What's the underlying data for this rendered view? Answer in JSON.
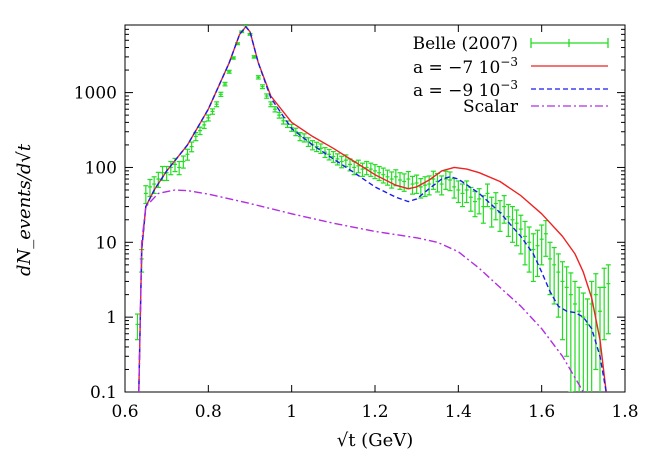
{
  "chart_data": {
    "type": "line",
    "title": "",
    "xlabel": "√t (GeV)",
    "ylabel": "dN_events/d√t",
    "xlim": [
      0.6,
      1.8
    ],
    "ylim": [
      0.1,
      8000
    ],
    "yscale": "log",
    "grid": false,
    "legend_position": "top-right",
    "x_ticks": [
      "0.6",
      "0.8",
      "1",
      "1.2",
      "1.4",
      "1.6",
      "1.8"
    ],
    "y_ticks": [
      "0.1",
      "1",
      "10",
      "100",
      "1000"
    ],
    "legend": [
      {
        "label": "Belle (2007)",
        "style": "points-errorbars",
        "color": "#22dd22"
      },
      {
        "label_prefix": "a = −7 10",
        "label_exp": "−3",
        "style": "solid",
        "color": "#ee2222"
      },
      {
        "label_prefix": "a = −9 10",
        "label_exp": "−3",
        "style": "dashed",
        "color": "#1a1aee"
      },
      {
        "label": "Scalar",
        "style": "dashdot",
        "color": "#b22ee0"
      }
    ],
    "series": [
      {
        "name": "a = −7 10^−3",
        "color": "#ee2222",
        "dash": "none",
        "x": [
          0.633,
          0.64,
          0.65,
          0.67,
          0.7,
          0.75,
          0.8,
          0.85,
          0.875,
          0.89,
          0.9,
          0.92,
          0.95,
          1.0,
          1.05,
          1.1,
          1.15,
          1.2,
          1.25,
          1.28,
          1.3,
          1.33,
          1.36,
          1.39,
          1.42,
          1.45,
          1.5,
          1.55,
          1.6,
          1.65,
          1.68,
          1.7,
          1.72,
          1.74,
          1.755
        ],
        "y": [
          0.1,
          8,
          30,
          50,
          90,
          200,
          600,
          2500,
          6000,
          7600,
          6500,
          2500,
          900,
          400,
          260,
          180,
          120,
          80,
          58,
          52,
          55,
          68,
          90,
          100,
          95,
          85,
          65,
          42,
          24,
          12,
          7,
          4,
          1.8,
          0.5,
          0.1
        ]
      },
      {
        "name": "a = −9 10^−3",
        "color": "#1a1aee",
        "dash": "5,3",
        "x": [
          0.633,
          0.64,
          0.65,
          0.67,
          0.7,
          0.75,
          0.8,
          0.85,
          0.875,
          0.89,
          0.9,
          0.92,
          0.95,
          1.0,
          1.05,
          1.1,
          1.15,
          1.2,
          1.25,
          1.28,
          1.3,
          1.33,
          1.36,
          1.38,
          1.4,
          1.45,
          1.5,
          1.55,
          1.58,
          1.6,
          1.62,
          1.64,
          1.66,
          1.68,
          1.7,
          1.72,
          1.74,
          1.755
        ],
        "y": [
          0.1,
          8,
          30,
          50,
          90,
          200,
          600,
          2500,
          6000,
          7600,
          6500,
          2500,
          850,
          330,
          200,
          130,
          85,
          55,
          40,
          35,
          38,
          52,
          70,
          75,
          70,
          45,
          25,
          12,
          7,
          4,
          2.2,
          1.4,
          1.2,
          1.15,
          1.0,
          0.7,
          0.3,
          0.1
        ]
      },
      {
        "name": "Scalar",
        "color": "#b22ee0",
        "dash": "8,3,2,3",
        "x": [
          0.633,
          0.64,
          0.65,
          0.68,
          0.72,
          0.75,
          0.8,
          0.9,
          1.0,
          1.1,
          1.2,
          1.3,
          1.35,
          1.4,
          1.45,
          1.5,
          1.55,
          1.6,
          1.65,
          1.7
        ],
        "y": [
          0.1,
          10,
          30,
          45,
          50,
          49,
          44,
          33,
          24,
          18,
          14,
          11.5,
          10,
          7.5,
          4.5,
          2.5,
          1.4,
          0.7,
          0.3,
          0.1
        ]
      }
    ],
    "belle_points": {
      "name": "Belle (2007)",
      "color": "#22dd22",
      "x": [
        0.63,
        0.64,
        0.65,
        0.66,
        0.67,
        0.68,
        0.69,
        0.7,
        0.71,
        0.72,
        0.73,
        0.74,
        0.75,
        0.76,
        0.77,
        0.78,
        0.79,
        0.8,
        0.81,
        0.82,
        0.83,
        0.84,
        0.85,
        0.86,
        0.87,
        0.88,
        0.89,
        0.9,
        0.91,
        0.92,
        0.93,
        0.94,
        0.95,
        0.96,
        0.97,
        0.98,
        0.99,
        1.0,
        1.01,
        1.02,
        1.03,
        1.04,
        1.05,
        1.06,
        1.07,
        1.08,
        1.09,
        1.1,
        1.11,
        1.12,
        1.13,
        1.14,
        1.15,
        1.16,
        1.17,
        1.18,
        1.19,
        1.2,
        1.21,
        1.22,
        1.23,
        1.24,
        1.25,
        1.26,
        1.27,
        1.28,
        1.29,
        1.3,
        1.31,
        1.32,
        1.33,
        1.34,
        1.35,
        1.36,
        1.37,
        1.38,
        1.39,
        1.4,
        1.41,
        1.42,
        1.43,
        1.44,
        1.45,
        1.46,
        1.47,
        1.48,
        1.49,
        1.5,
        1.51,
        1.52,
        1.53,
        1.54,
        1.55,
        1.56,
        1.57,
        1.58,
        1.59,
        1.6,
        1.61,
        1.62,
        1.63,
        1.64,
        1.65,
        1.66,
        1.67,
        1.68,
        1.69,
        1.7,
        1.71,
        1.72,
        1.73,
        1.74,
        1.75,
        1.76
      ],
      "y": [
        0.8,
        6,
        45,
        55,
        60,
        70,
        85,
        85,
        100,
        110,
        100,
        120,
        150,
        190,
        260,
        310,
        370,
        460,
        560,
        700,
        950,
        1300,
        1900,
        2900,
        4500,
        6500,
        8000,
        6000,
        3000,
        1600,
        1200,
        900,
        700,
        600,
        500,
        420,
        380,
        340,
        300,
        260,
        250,
        220,
        200,
        190,
        180,
        160,
        150,
        140,
        130,
        120,
        125,
        110,
        100,
        105,
        95,
        100,
        95,
        90,
        85,
        80,
        75,
        70,
        75,
        68,
        65,
        70,
        60,
        62,
        55,
        58,
        60,
        70,
        65,
        60,
        70,
        68,
        55,
        50,
        45,
        50,
        40,
        35,
        38,
        30,
        45,
        28,
        33,
        25,
        30,
        22,
        20,
        18,
        15,
        12,
        10,
        8,
        9,
        11,
        13,
        6,
        5,
        4,
        3,
        2.5,
        2,
        1.5,
        1.2,
        1,
        0.8,
        1.5,
        2,
        1.2,
        2.5,
        2.8
      ],
      "err": [
        0.3,
        2,
        12,
        14,
        15,
        16,
        18,
        18,
        20,
        22,
        20,
        22,
        25,
        28,
        32,
        35,
        38,
        42,
        46,
        52,
        60,
        70,
        85,
        100,
        130,
        160,
        180,
        160,
        110,
        80,
        70,
        60,
        52,
        48,
        44,
        40,
        38,
        36,
        34,
        32,
        31,
        29,
        28,
        27,
        26,
        24,
        24,
        23,
        22,
        21,
        22,
        20,
        20,
        20,
        19,
        20,
        19,
        19,
        18,
        18,
        17,
        17,
        18,
        17,
        17,
        18,
        16,
        17,
        16,
        17,
        17,
        19,
        18,
        17,
        19,
        19,
        16,
        16,
        15,
        16,
        14,
        13,
        14,
        12,
        15,
        12,
        13,
        11,
        12,
        10,
        10,
        9,
        8,
        7,
        6,
        5,
        5.5,
        6,
        6.5,
        4,
        3.5,
        3,
        2.5,
        2.2,
        1.9,
        1.5,
        1.3,
        1.1,
        0.95,
        1.5,
        1.8,
        1.3,
        2.0,
        2.2
      ]
    }
  }
}
